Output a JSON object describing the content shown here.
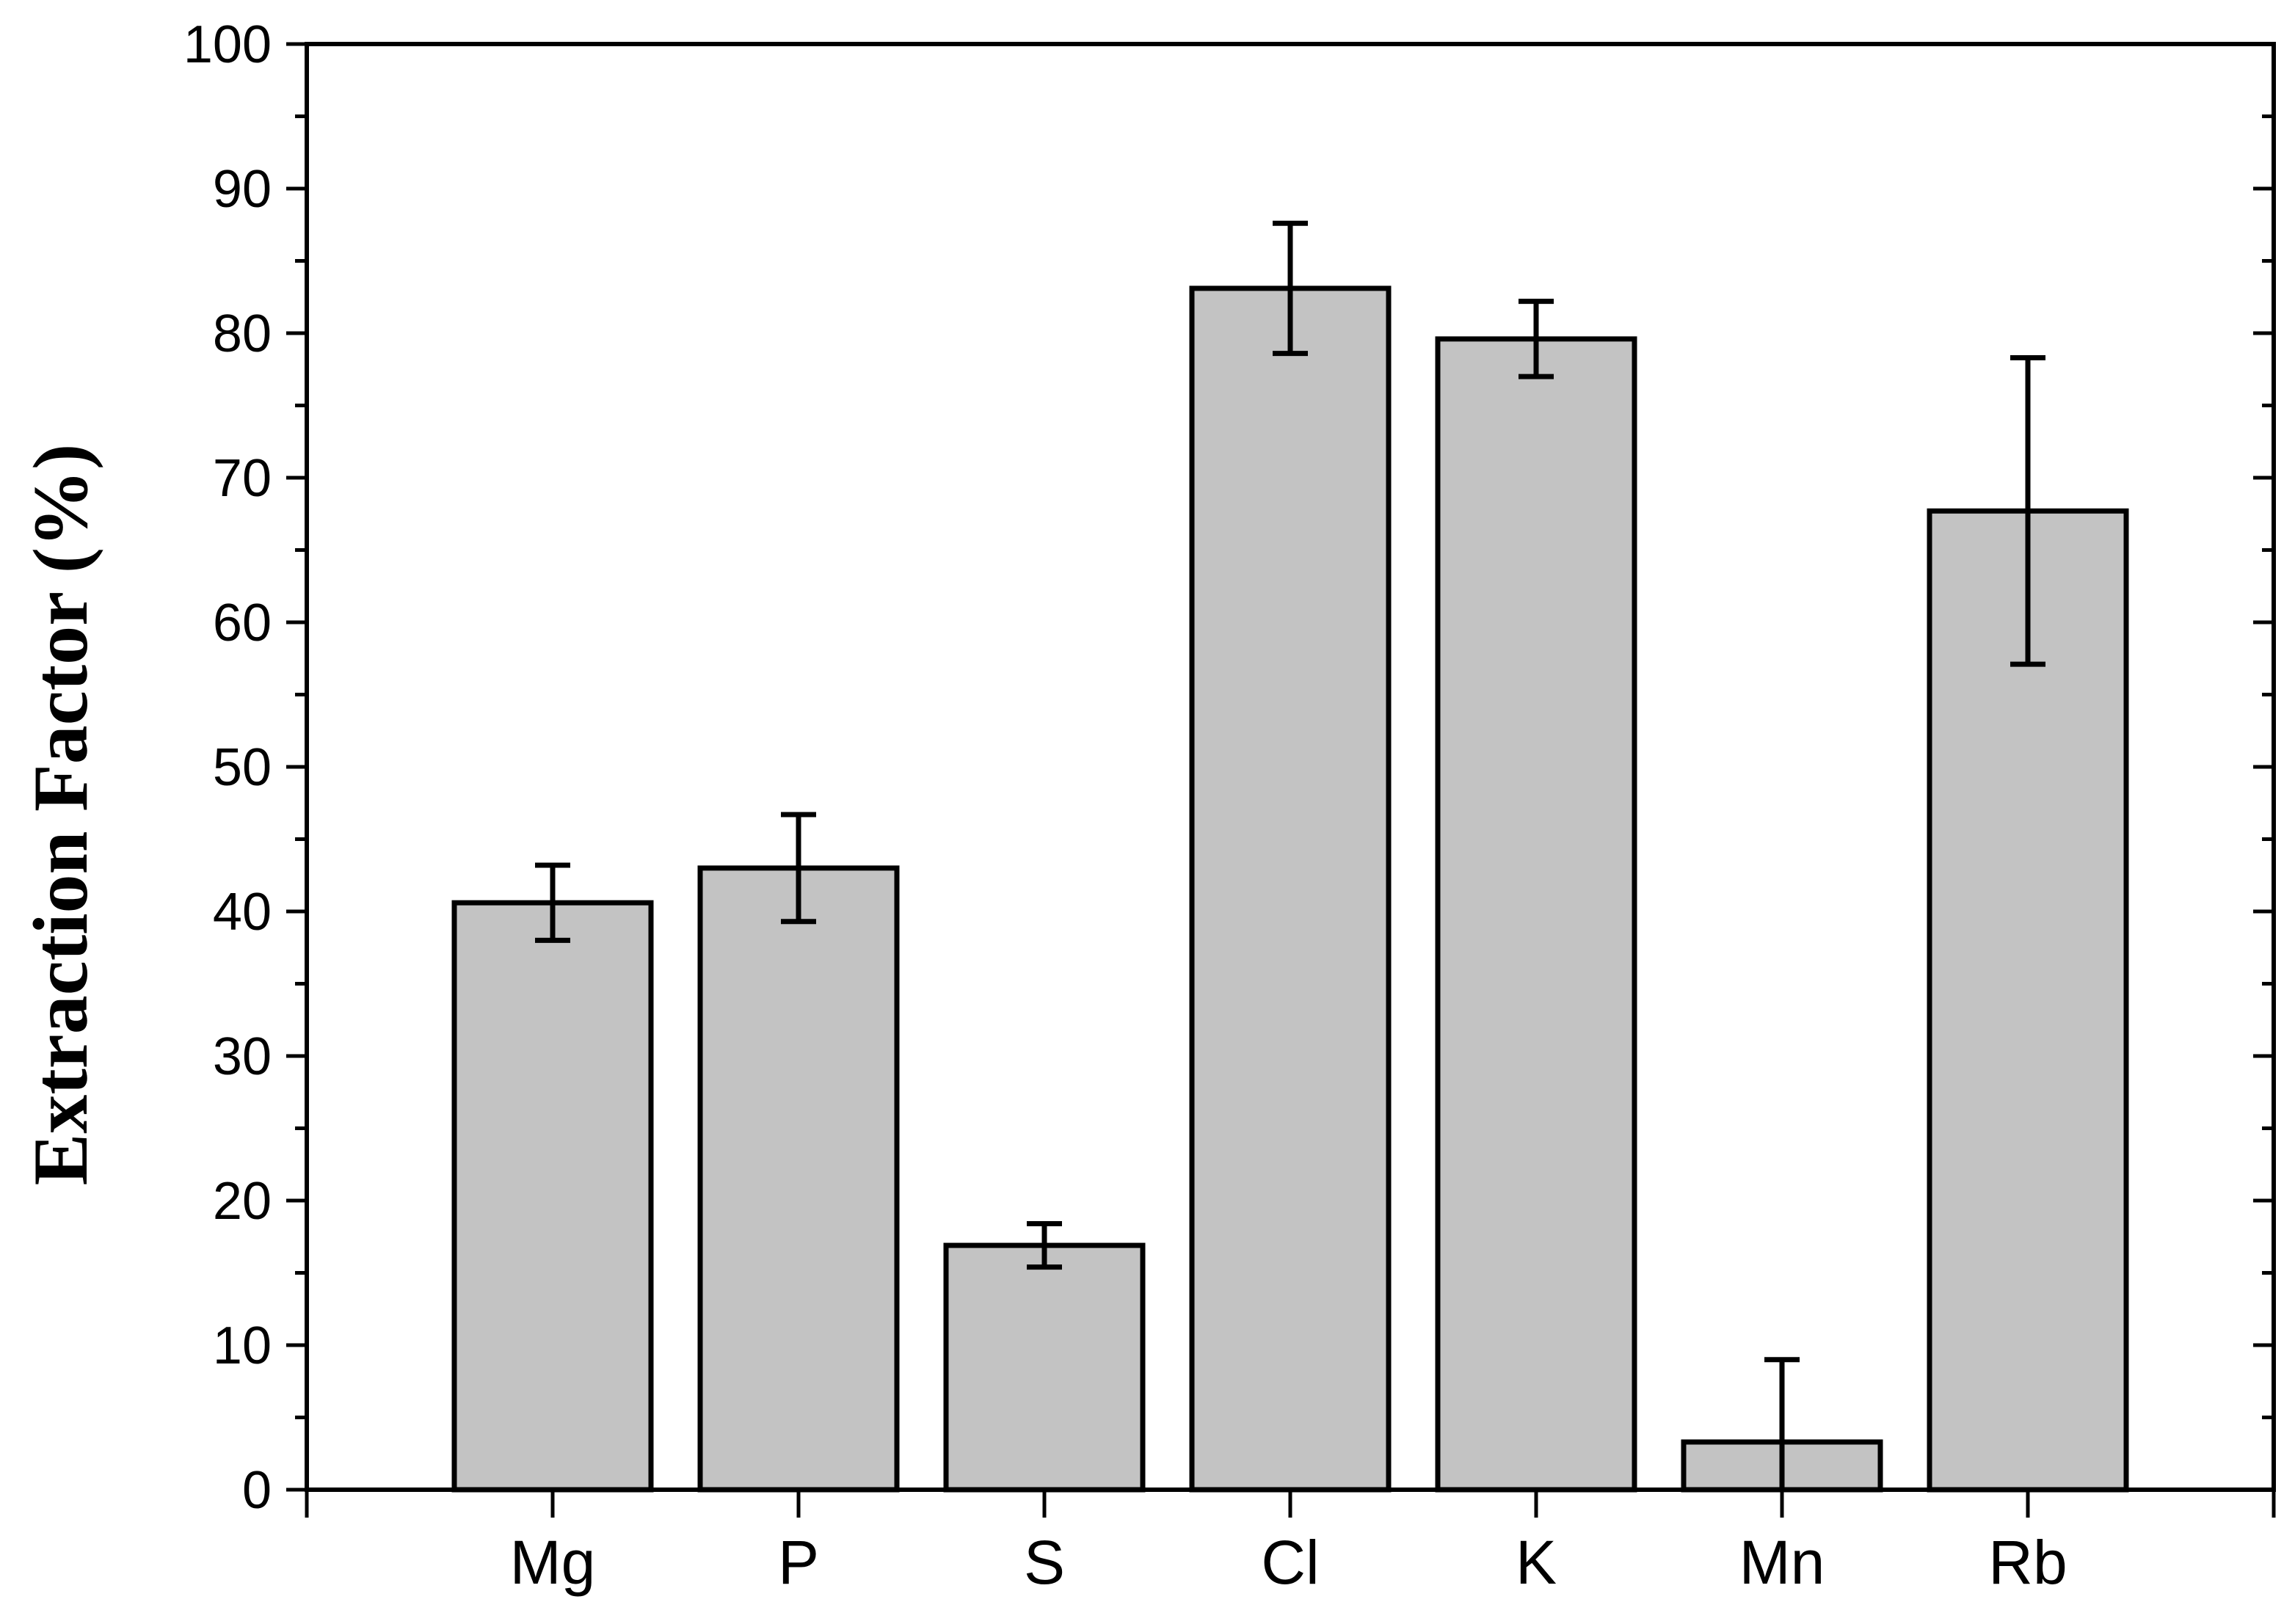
{
  "chart_data": {
    "type": "bar",
    "categories": [
      "Mg",
      "P",
      "S",
      "Cl",
      "K",
      "Mn",
      "Rb"
    ],
    "values": [
      40.6,
      43.0,
      16.9,
      83.1,
      79.6,
      3.3,
      67.7
    ],
    "errors": [
      2.6,
      3.7,
      1.5,
      4.5,
      2.6,
      5.7,
      10.6
    ],
    "title": "",
    "xlabel": "",
    "ylabel": "Extraction Factor (%)",
    "ylim": [
      0,
      100
    ],
    "yticks": [
      "0",
      "10",
      "20",
      "30",
      "40",
      "50",
      "60",
      "70",
      "80",
      "90",
      "100"
    ],
    "grid": false,
    "legend": "none",
    "colors": {
      "bar_fill": "#c3c3c3",
      "bar_stroke": "#000000",
      "axis": "#000000"
    }
  }
}
